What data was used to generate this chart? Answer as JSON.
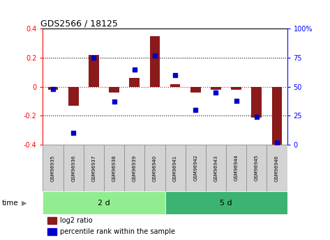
{
  "title": "GDS2566 / 18125",
  "samples": [
    "GSM96935",
    "GSM96936",
    "GSM96937",
    "GSM96938",
    "GSM96939",
    "GSM96940",
    "GSM96941",
    "GSM96942",
    "GSM96943",
    "GSM96944",
    "GSM96945",
    "GSM96946"
  ],
  "log2_ratio": [
    -0.02,
    -0.13,
    0.22,
    -0.04,
    0.06,
    0.35,
    0.02,
    -0.04,
    -0.02,
    -0.02,
    -0.21,
    -0.41
  ],
  "percentile_rank": [
    48,
    10,
    75,
    37,
    65,
    77,
    60,
    30,
    45,
    38,
    24,
    2
  ],
  "groups": [
    {
      "label": "2 d",
      "start": 0,
      "end": 6,
      "color": "#90ee90"
    },
    {
      "label": "5 d",
      "start": 6,
      "end": 12,
      "color": "#3cb371"
    }
  ],
  "ylim_left": [
    -0.4,
    0.4
  ],
  "ylim_right": [
    0,
    100
  ],
  "yticks_left": [
    -0.4,
    -0.2,
    0.0,
    0.2,
    0.4
  ],
  "yticks_right": [
    0,
    25,
    50,
    75,
    100
  ],
  "ytick_right_labels": [
    "0",
    "25",
    "50",
    "75",
    "100%"
  ],
  "bar_color": "#8b1a1a",
  "dot_color": "#0000cd",
  "background_color": "#ffffff",
  "time_label": "time",
  "legend_items": [
    {
      "label": "log2 ratio",
      "color": "#8b1a1a"
    },
    {
      "label": "percentile rank within the sample",
      "color": "#0000cd"
    }
  ]
}
